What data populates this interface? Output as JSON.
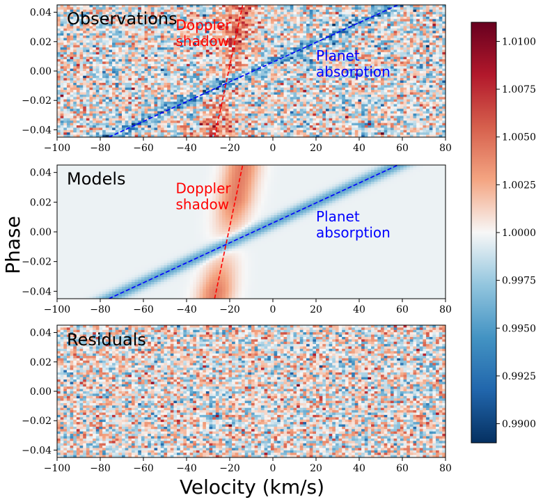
{
  "chart_data": {
    "type": "heatmap",
    "xlabel": "Velocity (km/s)",
    "ylabel": "Phase",
    "xlim": [
      -100,
      80
    ],
    "ylim": [
      -0.045,
      0.045
    ],
    "x_ticks": [
      "−100",
      "−80",
      "−60",
      "−40",
      "−20",
      "0",
      "20",
      "40",
      "60",
      "80"
    ],
    "x_tick_values": [
      -100,
      -80,
      -60,
      -40,
      -20,
      0,
      20,
      40,
      60,
      80
    ],
    "y_ticks": [
      "−0.04",
      "−0.02",
      "0.00",
      "0.02",
      "0.04"
    ],
    "y_tick_values": [
      -0.04,
      -0.02,
      0.0,
      0.02,
      0.04
    ],
    "colormap": "RdBu_r",
    "colorbar": {
      "range": [
        0.989,
        1.011
      ],
      "ticks": [
        "0.9900",
        "0.9925",
        "0.9950",
        "0.9975",
        "1.0000",
        "1.0025",
        "1.0050",
        "1.0075",
        "1.0100"
      ],
      "tick_values": [
        0.99,
        0.9925,
        0.995,
        0.9975,
        1.0,
        1.0025,
        1.005,
        1.0075,
        1.01
      ]
    },
    "lines": {
      "doppler_shadow": {
        "color": "#ff0000",
        "style": "dashed",
        "points": [
          [
            -27,
            -0.045
          ],
          [
            -14,
            0.045
          ]
        ]
      },
      "planet_absorption": {
        "color": "#0000ff",
        "style": "dashed",
        "points": [
          [
            -76,
            -0.045
          ],
          [
            58,
            0.045
          ]
        ]
      }
    },
    "panels": [
      {
        "title": "Observations",
        "annotations": [
          {
            "text": "Doppler\nshadow",
            "color": "#ff0000",
            "x": -45,
            "y": 0.028
          },
          {
            "text": "Planet\nabsorption",
            "color": "#0000ff",
            "x": 20,
            "y": 0.007
          }
        ]
      },
      {
        "title": "Models",
        "annotations": [
          {
            "text": "Doppler\nshadow",
            "color": "#ff0000",
            "x": -45,
            "y": 0.026
          },
          {
            "text": "Planet\nabsorption",
            "color": "#0000ff",
            "x": 20,
            "y": 0.007
          }
        ]
      },
      {
        "title": "Residuals",
        "annotations": []
      }
    ]
  }
}
